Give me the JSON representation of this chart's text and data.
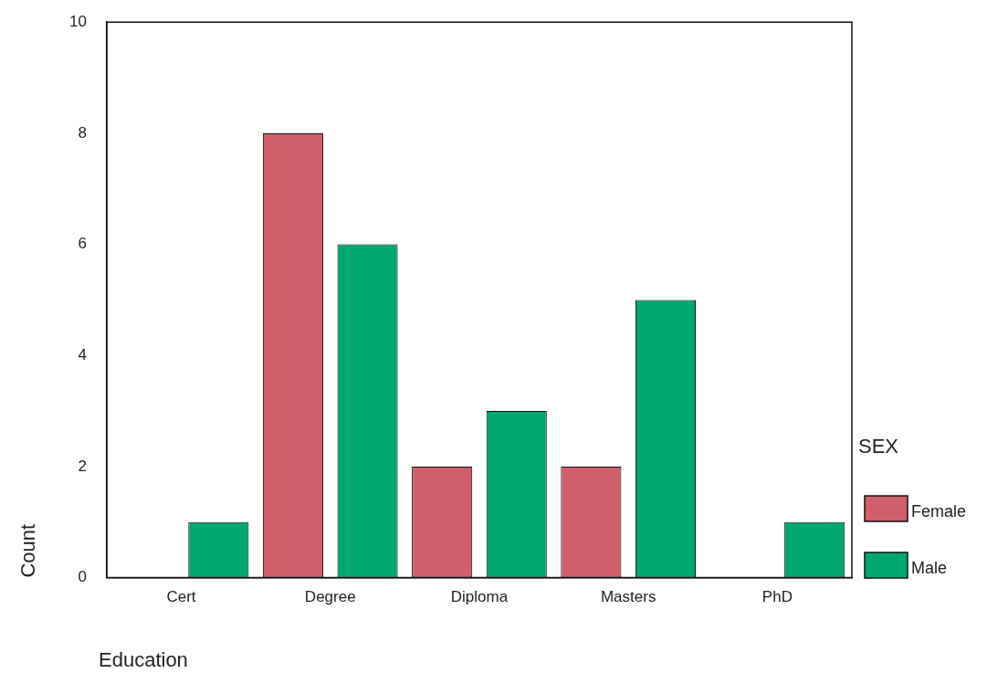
{
  "chart_data": {
    "type": "bar",
    "xlabel": "Education",
    "ylabel": "Count",
    "legend_title": "SEX",
    "legend": "right",
    "grid": false,
    "categories": [
      "Cert",
      "Degree",
      "Diploma",
      "Masters",
      "PhD"
    ],
    "series": [
      {
        "name": "Female",
        "color": "#d05f6b",
        "values": [
          0,
          8,
          2,
          2,
          0
        ]
      },
      {
        "name": "Male",
        "color": "#00a870",
        "values": [
          1,
          6,
          3,
          5,
          1
        ]
      }
    ],
    "ylim": [
      0,
      10
    ],
    "yticks": [
      0,
      2,
      4,
      6,
      8,
      10
    ]
  }
}
